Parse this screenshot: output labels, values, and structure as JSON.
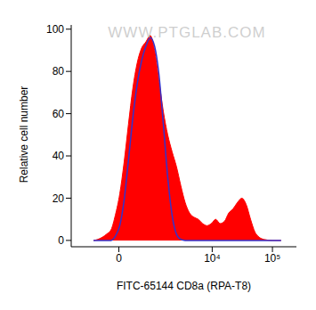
{
  "chart_data": {
    "type": "histogram",
    "xlabel": "FITC-65144 CD8a (RPA-T8)",
    "ylabel": "Relative cell number",
    "annotations": [
      "WWW.PTGLAB.COM"
    ],
    "xlim": [
      -1700,
      250000
    ],
    "ylim": [
      -3,
      102
    ],
    "xticks": [
      0,
      {
        "value": 10000,
        "label": "10⁴"
      },
      {
        "value": 100000,
        "label": "10⁵"
      }
    ],
    "yticks": [
      0,
      20,
      40,
      60,
      80,
      100
    ],
    "x": [
      -637,
      -502,
      -382,
      -273,
      -172,
      -76,
      19,
      114,
      212,
      316,
      429,
      554,
      694,
      853,
      1033,
      1241,
      1495,
      1783,
      2122,
      2518,
      2983,
      3531,
      4181,
      4955,
      5853,
      6921,
      8181,
      9662,
      11419,
      13498,
      15950,
      18837,
      22261,
      26273,
      31064,
      36669,
      43336,
      51189,
      60512,
      71473,
      99836,
      139216
    ],
    "series": [
      {
        "type": "area",
        "color": "#ff0000",
        "values": [
          0,
          0.5,
          1.5,
          3,
          5,
          12,
          22,
          37,
          55,
          72,
          84,
          91,
          94,
          97,
          90,
          76,
          61,
          50,
          42,
          35,
          26,
          18,
          13,
          11,
          10,
          8,
          7,
          8,
          10,
          8,
          9,
          13,
          15,
          18,
          20,
          17,
          10,
          4,
          1.5,
          0.5,
          0,
          0
        ]
      },
      {
        "type": "line",
        "color": "#3333cc",
        "values": [
          0,
          0,
          0,
          0,
          0,
          2,
          7,
          19,
          38,
          58,
          74,
          85,
          92,
          96,
          92,
          79,
          55,
          30,
          12,
          3,
          0.5,
          0,
          0,
          0,
          0,
          0,
          0,
          0,
          0,
          0,
          0,
          0,
          0,
          0,
          0,
          0,
          0,
          0,
          0,
          0,
          0,
          0
        ]
      }
    ]
  }
}
